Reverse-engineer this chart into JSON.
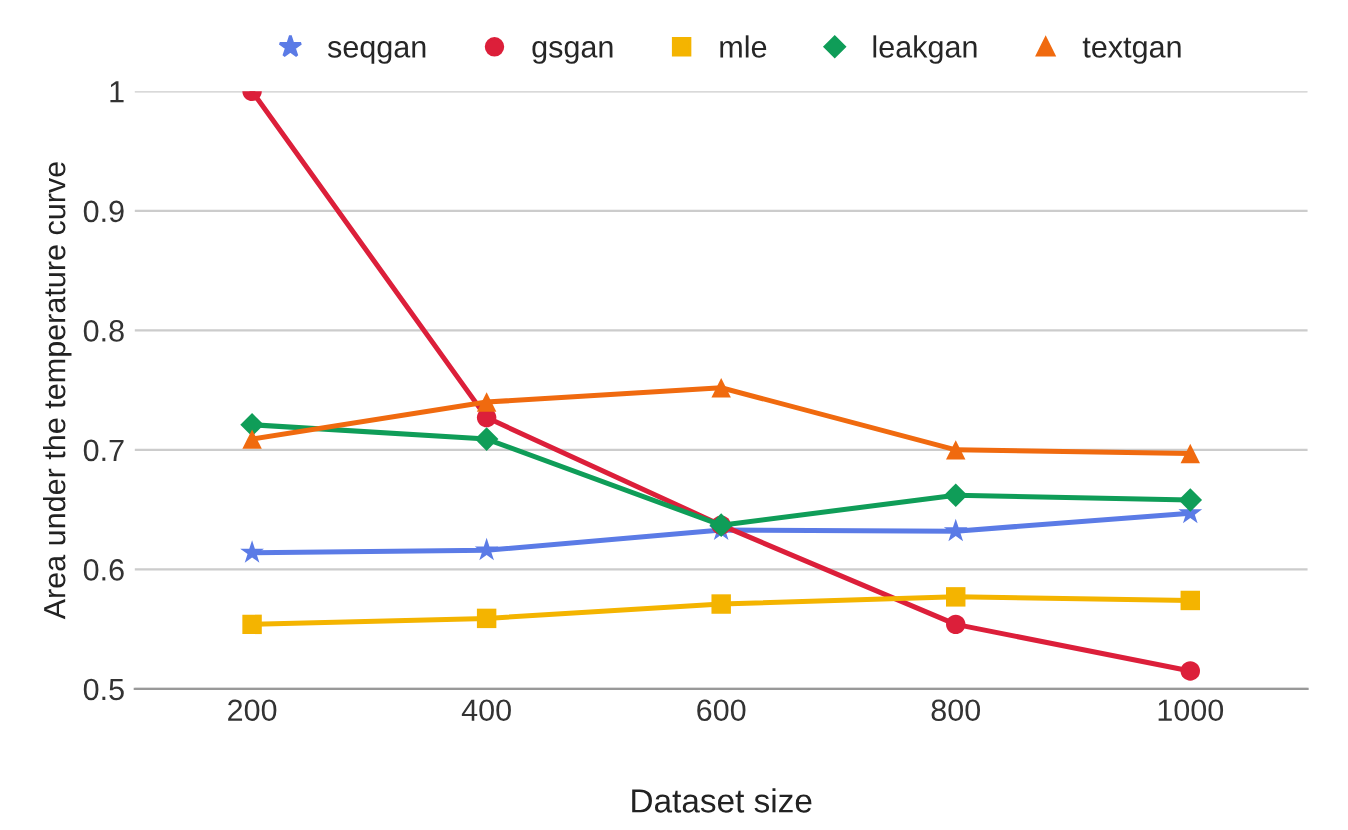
{
  "chart_data": {
    "type": "line",
    "xlabel": "Dataset size",
    "ylabel": "Area under the temperature curve",
    "categories": [
      "200",
      "400",
      "600",
      "800",
      "1000"
    ],
    "series": [
      {
        "name": "seqgan",
        "color": "#5b7be6",
        "marker": "star",
        "values": [
          0.614,
          0.616,
          0.633,
          0.632,
          0.647
        ]
      },
      {
        "name": "gsgan",
        "color": "#dc1f3a",
        "marker": "circle",
        "values": [
          1.0,
          0.727,
          0.637,
          0.554,
          0.515
        ]
      },
      {
        "name": "mle",
        "color": "#f4b400",
        "marker": "square",
        "values": [
          0.554,
          0.559,
          0.571,
          0.577,
          0.574
        ]
      },
      {
        "name": "leakgan",
        "color": "#0f9d58",
        "marker": "diamond",
        "values": [
          0.721,
          0.709,
          0.637,
          0.662,
          0.658
        ]
      },
      {
        "name": "textgan",
        "color": "#f06a0f",
        "marker": "triangle",
        "values": [
          0.709,
          0.74,
          0.752,
          0.7,
          0.697
        ]
      }
    ],
    "ylim": [
      0.5,
      1
    ],
    "yticks": [
      0.5,
      0.6,
      0.7,
      0.8,
      0.9,
      1
    ],
    "grid": "y",
    "legend": "top",
    "line_style": "solid"
  }
}
